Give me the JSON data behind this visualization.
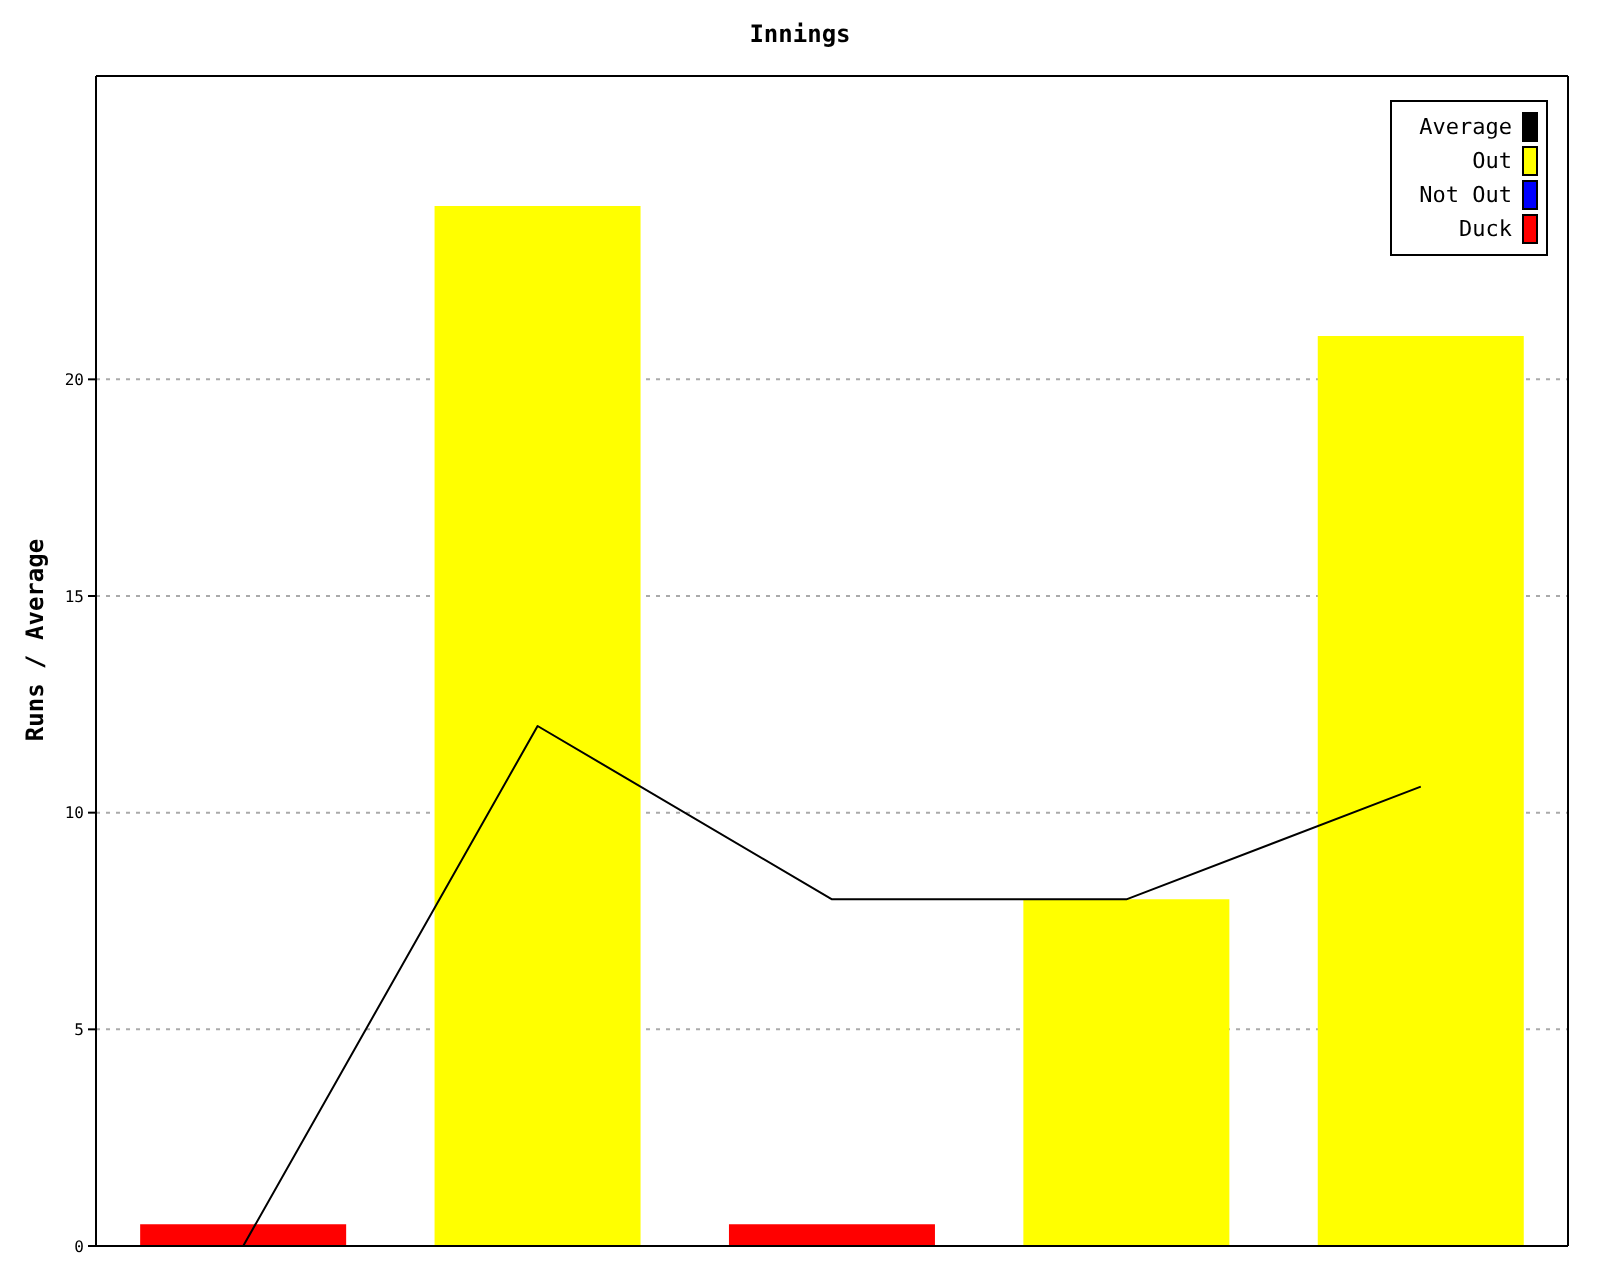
{
  "chart_data": {
    "type": "bar",
    "title": "Innings",
    "ylabel": "Runs / Average",
    "categories": [
      null,
      null,
      null,
      null,
      null
    ],
    "stacked": true,
    "series": [
      {
        "name": "Average",
        "type": "line",
        "color": "#000000",
        "values": [
          0,
          12,
          8,
          8,
          10.6
        ]
      },
      {
        "name": "Out",
        "color": "#ffff00",
        "values": [
          null,
          24,
          null,
          8,
          21
        ]
      },
      {
        "name": "Not Out",
        "color": "#0000ff",
        "values": [
          null,
          null,
          null,
          null,
          null
        ]
      },
      {
        "name": "Duck",
        "color": "#ff0000",
        "values": [
          0.5,
          null,
          0.5,
          null,
          null
        ]
      }
    ],
    "ylim": [
      0,
      27
    ],
    "yticks": [
      0,
      5,
      10,
      15,
      20
    ],
    "grid": "y",
    "legend": "top right",
    "marker": "none",
    "tick_labels": "y"
  }
}
